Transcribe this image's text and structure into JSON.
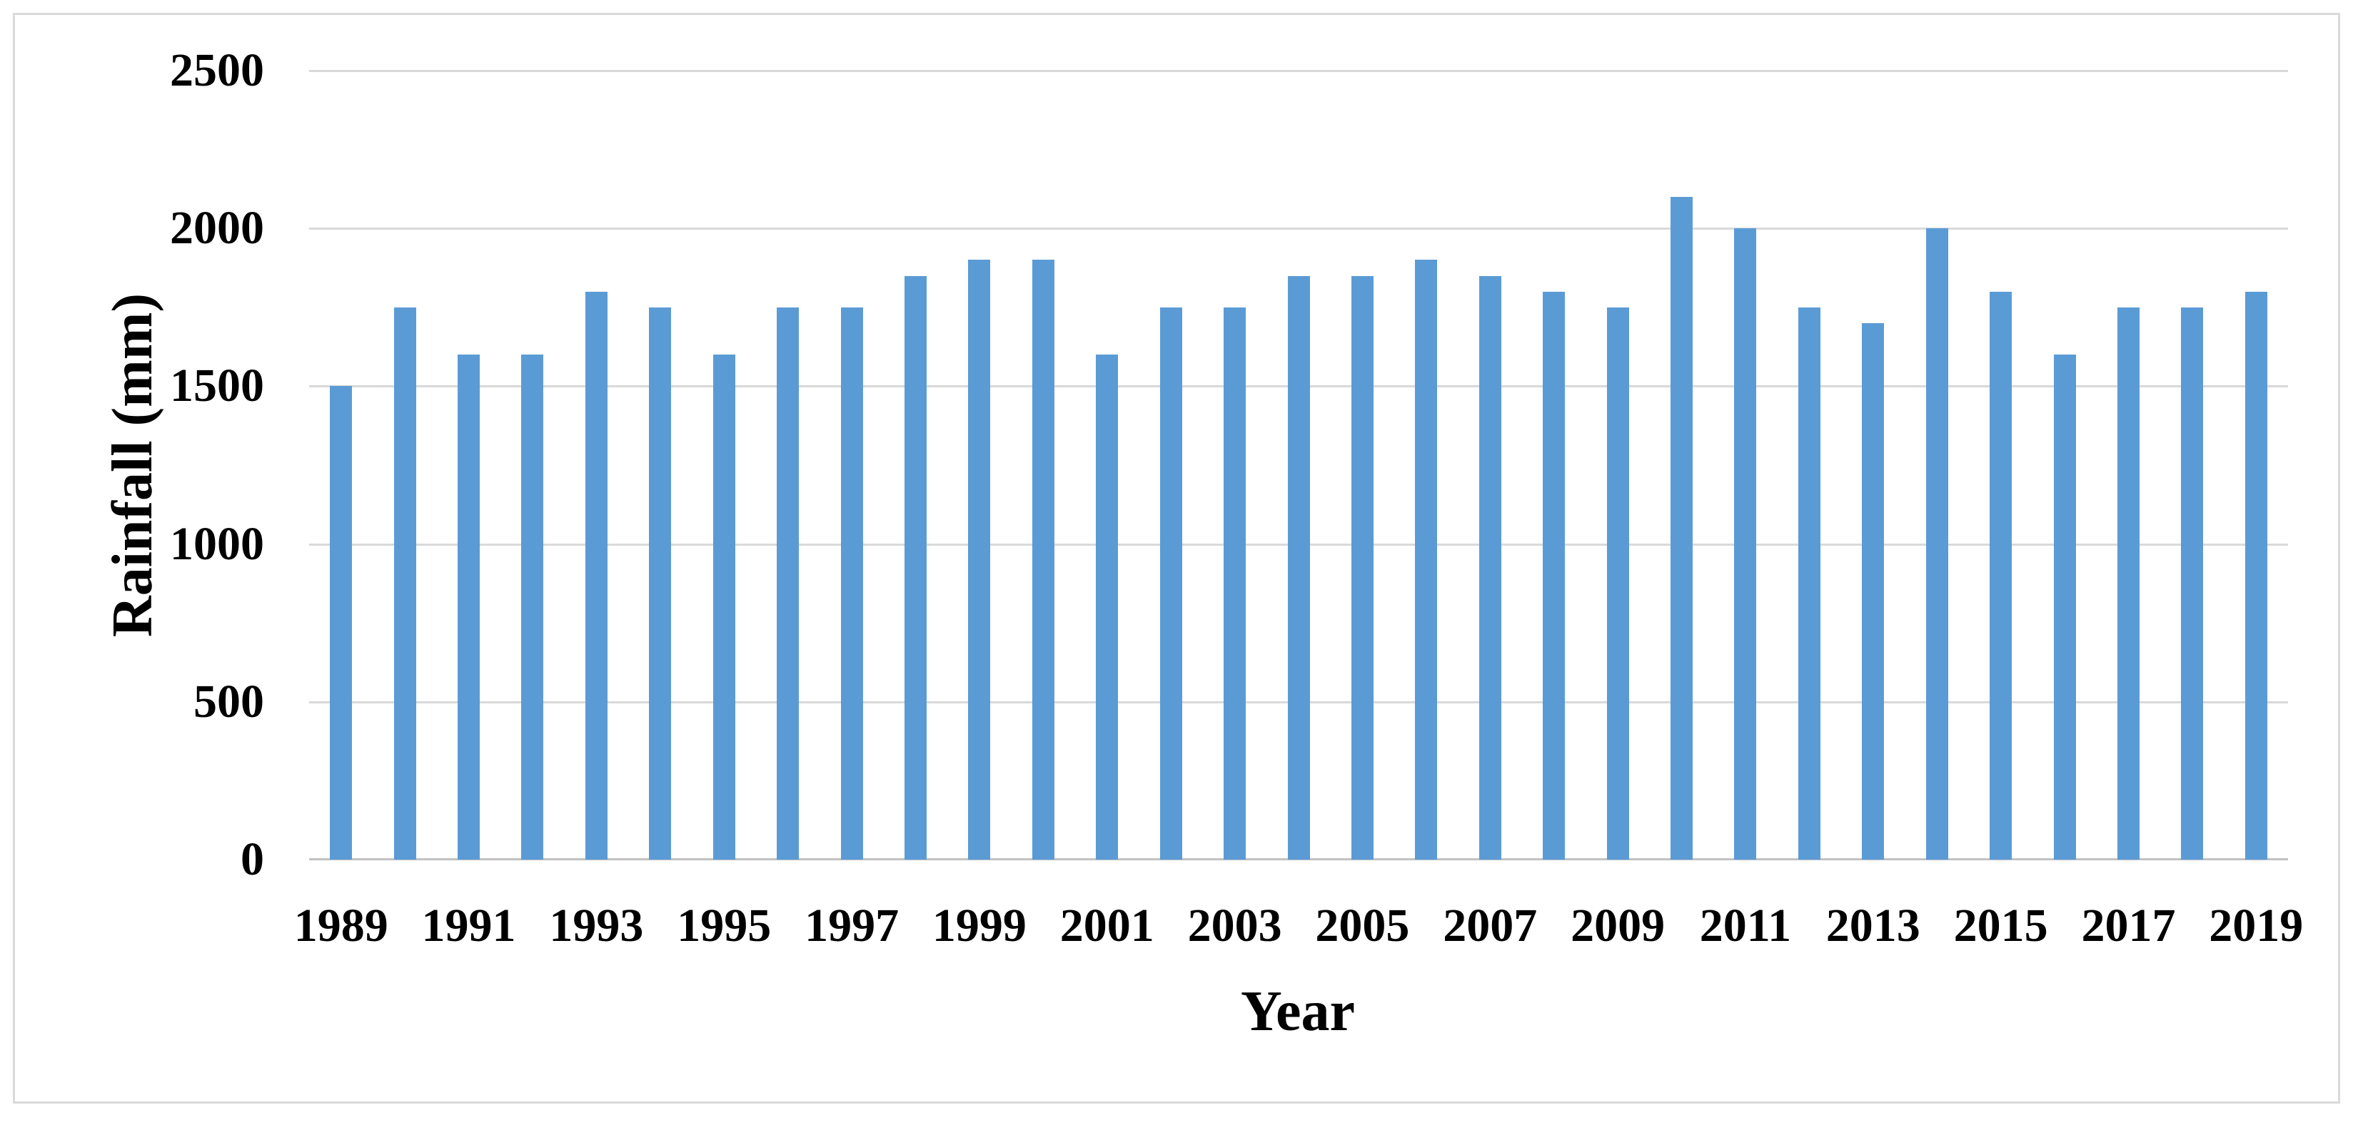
{
  "chart_data": {
    "type": "bar",
    "title": "",
    "xlabel": "Year",
    "ylabel": "Rainfall (mm)",
    "categories": [
      1989,
      1990,
      1991,
      1992,
      1993,
      1994,
      1995,
      1996,
      1997,
      1998,
      1999,
      2000,
      2001,
      2002,
      2003,
      2004,
      2005,
      2006,
      2007,
      2008,
      2009,
      2010,
      2011,
      2012,
      2013,
      2014,
      2015,
      2016,
      2017,
      2018,
      2019
    ],
    "values": [
      1500,
      1750,
      1600,
      1600,
      1800,
      1750,
      1600,
      1750,
      1750,
      1850,
      1900,
      1900,
      1600,
      1750,
      1750,
      1850,
      1850,
      1900,
      1850,
      1800,
      1750,
      2100,
      2000,
      1750,
      1700,
      2000,
      1800,
      1600,
      1750,
      1750,
      1800
    ],
    "ylim": [
      0,
      2500
    ],
    "yticks": [
      0,
      500,
      1000,
      1500,
      2000,
      2500
    ],
    "xtick_labels": [
      "1989",
      "1991",
      "1993",
      "1995",
      "1997",
      "1999",
      "2001",
      "2003",
      "2005",
      "2007",
      "2009",
      "2011",
      "2013",
      "2015",
      "2017",
      "2019"
    ],
    "xtick_every": 2,
    "grid": "horizontal-only",
    "legend_position": "none",
    "colors": {
      "bar": "#5B9BD5",
      "gridline": "#D9D9D9",
      "axis_line": "#C2C2C2",
      "frame_border": "#D9D9D9",
      "text": "#000000",
      "background": "#FFFFFF"
    }
  }
}
